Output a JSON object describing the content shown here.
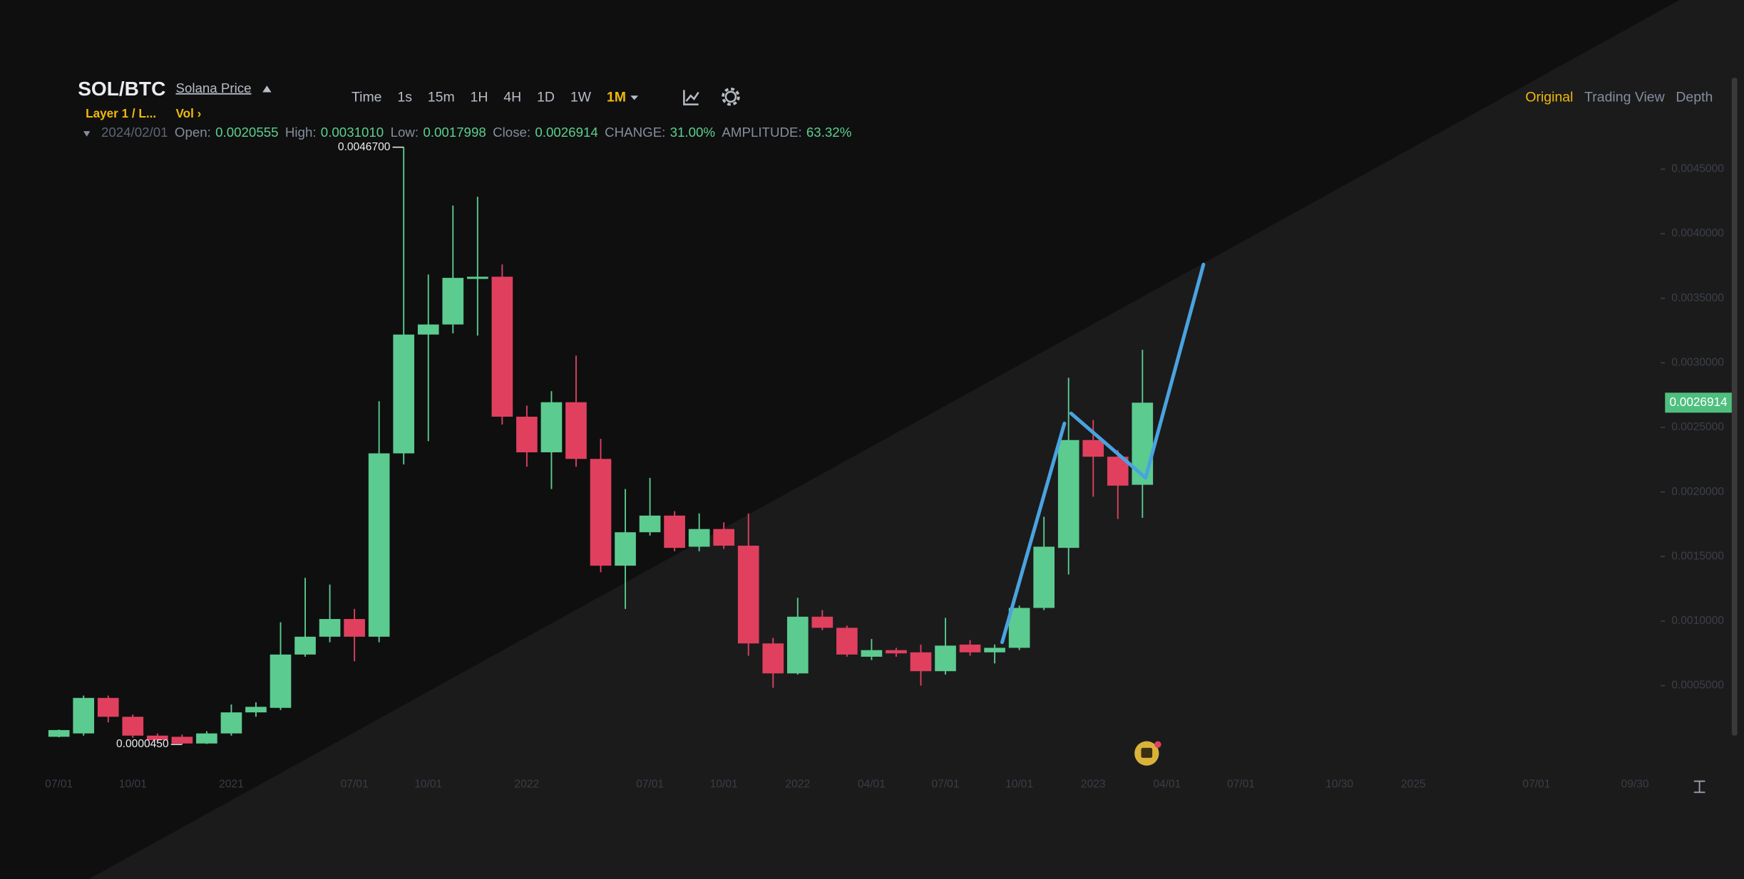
{
  "header": {
    "pair": "SOL/BTC",
    "link": "Solana Price",
    "tags": [
      "Layer 1 / L...",
      "Vol ›"
    ]
  },
  "toolbar": {
    "intervals": [
      "Time",
      "1s",
      "15m",
      "1H",
      "4H",
      "1D",
      "1W",
      "1M"
    ],
    "active_interval": "1M"
  },
  "view_tabs": {
    "tabs": [
      "Original",
      "Trading View",
      "Depth"
    ],
    "active_tab": "Original"
  },
  "ohlc_info": {
    "date": "2024/02/01",
    "fields": [
      {
        "label": "Open:",
        "value": "0.0020555"
      },
      {
        "label": "High:",
        "value": "0.0031010"
      },
      {
        "label": "Low:",
        "value": "0.0017998"
      },
      {
        "label": "Close:",
        "value": "0.0026914"
      },
      {
        "label": "CHANGE:",
        "value": "31.00%"
      },
      {
        "label": "AMPLITUDE:",
        "value": "63.32%"
      }
    ]
  },
  "chart_data": {
    "type": "candlestick",
    "categories": [
      "07/01",
      null,
      null,
      "10/01",
      null,
      null,
      null,
      "2021",
      null,
      null,
      null,
      null,
      "07/01",
      null,
      null,
      "10/01",
      null,
      null,
      null,
      "2022",
      null,
      null,
      null,
      null,
      "07/01",
      null,
      null,
      "10/01",
      null,
      null,
      "2022",
      null,
      null,
      "04/01",
      null,
      null,
      "07/01",
      null,
      null,
      "10/01",
      null,
      null,
      "2023",
      null,
      null,
      "04/01",
      null,
      null,
      "07/01",
      null,
      null,
      null,
      "10/30",
      null,
      null,
      "2025",
      null,
      null,
      null,
      null,
      "07/01",
      null,
      null,
      null,
      "09/30"
    ],
    "open": [
      0.000104,
      0.00013,
      0.000405,
      0.000259,
      0.000113,
      0.000104,
      5.2e-05,
      0.00013,
      0.000293,
      0.000328,
      0.000741,
      0.000879,
      0.001016,
      0.000879,
      0.002299,
      0.003219,
      0.003297,
      0.00365,
      0.003667,
      0.002583,
      0.002307,
      0.002695,
      0.002256,
      0.001429,
      0.001688,
      0.001817,
      0.001576,
      0.001713,
      0.001584,
      0.000827,
      0.000595,
      0.001034,
      0.000948,
      0.000724,
      0.000775,
      0.000758,
      0.000612,
      0.000818,
      0.000758,
      0.000793,
      0.001102,
      0.001567,
      0.002402,
      0.002273,
      0.0020555,
      null,
      null,
      null,
      null,
      null,
      null,
      null,
      null,
      null,
      null,
      null,
      null,
      null,
      null,
      null,
      null,
      null,
      null,
      null,
      null
    ],
    "high": [
      0.00016,
      0.000423,
      0.000423,
      0.000276,
      0.00013,
      0.000121,
      0.000147,
      0.000354,
      0.000371,
      0.000991,
      0.001335,
      0.001283,
      0.001094,
      0.002703,
      0.00467,
      0.003684,
      0.004218,
      0.004287,
      0.003762,
      0.002669,
      0.002781,
      0.003056,
      0.002411,
      0.002023,
      0.002109,
      0.001851,
      0.001834,
      0.001765,
      0.001834,
      0.00087,
      0.00118,
      0.001085,
      0.000965,
      0.000861,
      0.000793,
      0.000818,
      0.001025,
      0.000853,
      0.000818,
      0.00112,
      0.001808,
      0.002884,
      0.002557,
      0.002325,
      0.003101,
      null,
      null,
      null,
      null,
      null,
      null,
      null,
      null,
      null,
      null,
      null,
      null,
      null,
      null,
      null,
      null,
      null,
      null,
      null,
      null
    ],
    "low": [
      0.0001,
      0.000113,
      0.000216,
      9.6e-05,
      6.1e-05,
      4.5e-05,
      4.8e-05,
      0.000113,
      0.000259,
      0.000311,
      0.000724,
      0.000836,
      0.000689,
      0.000836,
      0.002213,
      0.002393,
      0.003228,
      0.003211,
      0.002522,
      0.002195,
      0.002023,
      0.002195,
      0.001378,
      0.001094,
      0.001662,
      0.001541,
      0.001541,
      0.001559,
      0.000732,
      0.000483,
      0.000586,
      0.00093,
      0.000724,
      0.000698,
      0.000724,
      0.0005,
      0.000586,
      0.000732,
      0.000672,
      0.000775,
      0.001085,
      0.001361,
      0.001963,
      0.001791,
      0.0017998,
      null,
      null,
      null,
      null,
      null,
      null,
      null,
      null,
      null,
      null,
      null,
      null,
      null,
      null,
      null,
      null,
      null,
      null,
      null,
      null
    ],
    "close": [
      0.000156,
      0.000405,
      0.000259,
      0.000113,
      7.8e-05,
      5.2e-05,
      0.00013,
      0.000293,
      0.000336,
      0.000741,
      0.000879,
      0.001016,
      0.000879,
      0.002299,
      0.003219,
      0.003297,
      0.003658,
      0.003667,
      0.002583,
      0.002307,
      0.002695,
      0.002256,
      0.001429,
      0.001688,
      0.001817,
      0.001567,
      0.001713,
      0.001584,
      0.000827,
      0.000595,
      0.001034,
      0.000948,
      0.000741,
      0.000775,
      0.00075,
      0.000612,
      0.00081,
      0.000758,
      0.000793,
      0.001102,
      0.001576,
      0.002402,
      0.002273,
      0.002049,
      0.0026914,
      null,
      null,
      null,
      null,
      null,
      null,
      null,
      null,
      null,
      null,
      null,
      null,
      null,
      null,
      null,
      null,
      null,
      null,
      null,
      null
    ],
    "up_color": "#5ccb8f",
    "down_color": "#e0405e",
    "ylim": [
      -0.000128,
      0.004691
    ],
    "yticks": [
      {
        "value": 0.0005,
        "label": "0.0005000"
      },
      {
        "value": 0.001,
        "label": "0.0010000"
      },
      {
        "value": 0.0015,
        "label": "0.0015000"
      },
      {
        "value": 0.002,
        "label": "0.0020000"
      },
      {
        "value": 0.0025,
        "label": "0.0025000"
      },
      {
        "value": 0.003,
        "label": "0.0030000"
      },
      {
        "value": 0.0035,
        "label": "0.0035000"
      },
      {
        "value": 0.004,
        "label": "0.0040000"
      },
      {
        "value": 0.0045,
        "label": "0.0045000"
      }
    ],
    "annotations": [
      {
        "value": 0.00467,
        "label": "0.0046700"
      },
      {
        "value": 4.5e-05,
        "label": "0.0000450"
      }
    ]
  }
}
